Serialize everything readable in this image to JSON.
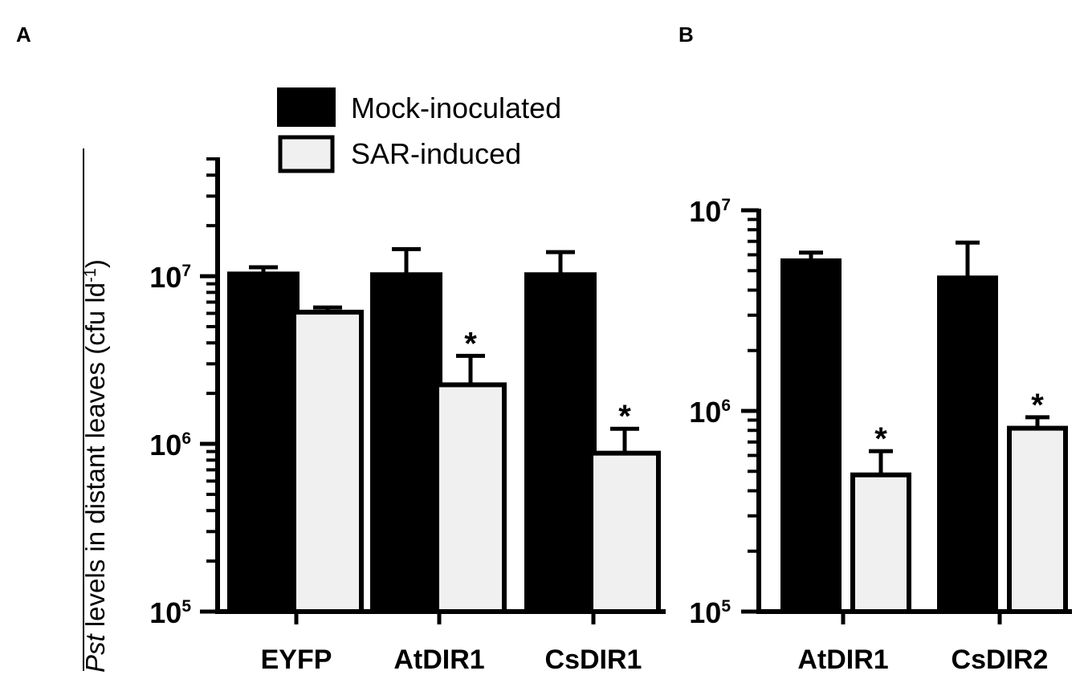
{
  "panels": {
    "a": "A",
    "b": "B"
  },
  "legend": {
    "mock": "Mock-inoculated",
    "sar": "SAR-induced"
  },
  "colors": {
    "mock_fill": "#000000",
    "sar_fill": "#f0f0f0",
    "stroke": "#000000"
  },
  "ylabel": {
    "italic": "Pst",
    "rest": " levels in distant leaves (cfu ld",
    "sup": "-1",
    "close": ")"
  },
  "chart_data": [
    {
      "panel": "A",
      "type": "bar",
      "scale": "log",
      "ylim": [
        100000,
        50000000
      ],
      "yticks": [
        {
          "value": 100000,
          "base": "10",
          "exp": "5"
        },
        {
          "value": 1000000,
          "base": "10",
          "exp": "6"
        },
        {
          "value": 10000000,
          "base": "10",
          "exp": "7"
        }
      ],
      "categories": [
        "EYFP",
        "AtDIR1",
        "CsDIR1"
      ],
      "series": [
        {
          "name": "Mock-inoculated",
          "values": [
            10300000,
            10200000,
            10200000
          ],
          "errors": [
            11300000,
            14500000,
            13900000
          ]
        },
        {
          "name": "SAR-induced",
          "values": [
            6100000,
            2250000,
            880000
          ],
          "errors": [
            6500000,
            3350000,
            1230000
          ]
        }
      ],
      "significance": [
        {
          "category": "AtDIR1",
          "series": "SAR-induced",
          "mark": "*"
        },
        {
          "category": "CsDIR1",
          "series": "SAR-induced",
          "mark": "*"
        }
      ]
    },
    {
      "panel": "B",
      "type": "bar",
      "scale": "log",
      "ylim": [
        100000,
        10000000
      ],
      "yticks": [
        {
          "value": 100000,
          "base": "10",
          "exp": "5"
        },
        {
          "value": 1000000,
          "base": "10",
          "exp": "6"
        },
        {
          "value": 10000000,
          "base": "10",
          "exp": "7"
        }
      ],
      "categories": [
        "AtDIR1",
        "CsDIR2"
      ],
      "series": [
        {
          "name": "Mock-inoculated",
          "values": [
            5600000,
            4600000
          ],
          "errors": [
            6150000,
            6900000
          ]
        },
        {
          "name": "SAR-induced",
          "values": [
            480000,
            820000
          ],
          "errors": [
            630000,
            930000
          ]
        }
      ],
      "significance": [
        {
          "category": "AtDIR1",
          "series": "SAR-induced",
          "mark": "*"
        },
        {
          "category": "CsDIR2",
          "series": "SAR-induced",
          "mark": "*"
        }
      ]
    }
  ]
}
